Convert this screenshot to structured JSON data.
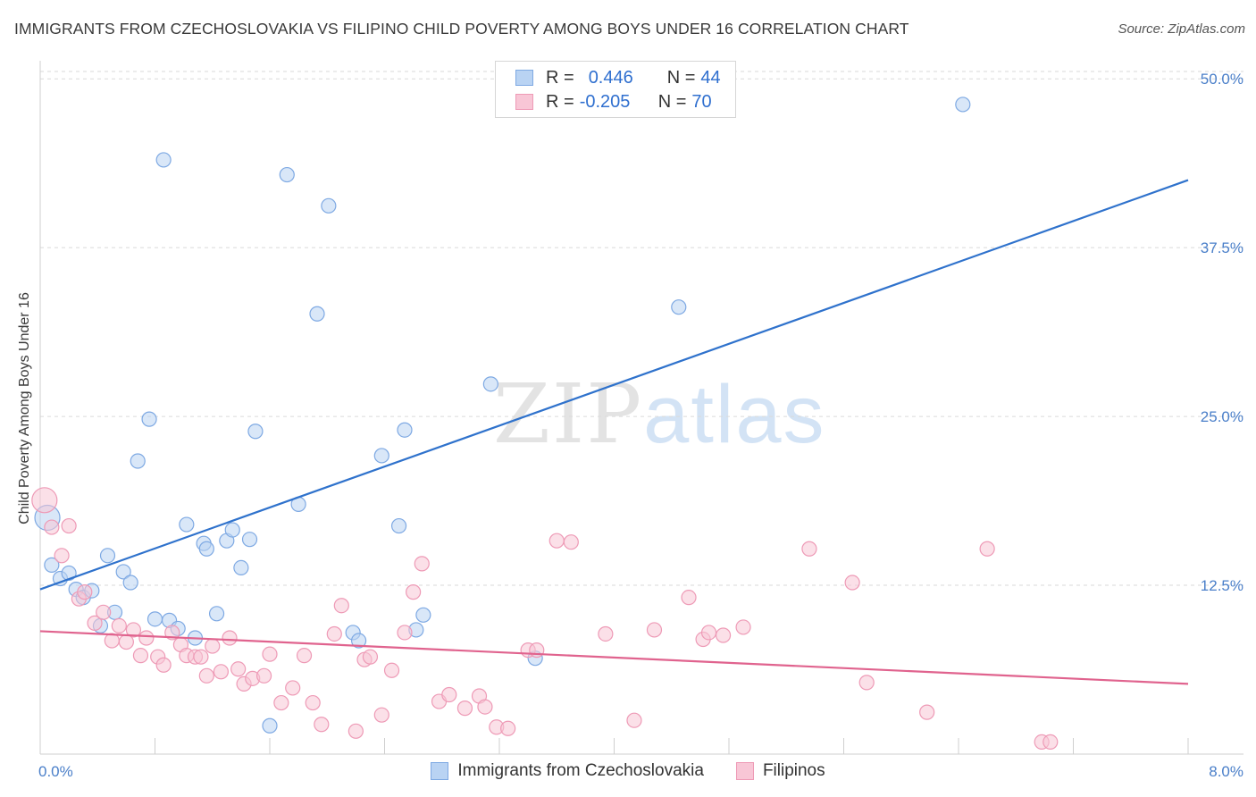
{
  "title": "IMMIGRANTS FROM CZECHOSLOVAKIA VS FILIPINO CHILD POVERTY AMONG BOYS UNDER 16 CORRELATION CHART",
  "source": "Source: ZipAtlas.com",
  "watermark": {
    "zip": "ZIP",
    "atlas": "atlas"
  },
  "legend": {
    "rows": [
      {
        "r_label": "R =",
        "r_value": "0.446",
        "n_label": "N =",
        "n_value": "44"
      },
      {
        "r_label": "R =",
        "r_value": "-0.205",
        "n_label": "N =",
        "n_value": "70"
      }
    ]
  },
  "colors": {
    "blue_fill": "#b9d3f3",
    "blue_stroke": "#7ea9e3",
    "blue_line": "#2f72cc",
    "pink_fill": "#f8c6d6",
    "pink_stroke": "#ee9ab6",
    "pink_line": "#e0638e",
    "axis_text": "#4a7fc9",
    "grid": "#dadada"
  },
  "chart_data": {
    "type": "scatter",
    "xlabel": "",
    "ylabel": "Child Poverty Among Boys Under 16",
    "xlim": [
      0,
      8
    ],
    "ylim": [
      0,
      52
    ],
    "x_tick_labels": [
      {
        "value": 0,
        "label": "0.0%"
      },
      {
        "value": 8,
        "label": "8.0%"
      }
    ],
    "y_tick_labels": [
      {
        "value": 12.5,
        "label": "12.5%"
      },
      {
        "value": 25,
        "label": "25.0%"
      },
      {
        "value": 37.5,
        "label": "37.5%"
      },
      {
        "value": 50,
        "label": "50.0%"
      }
    ],
    "grid": true,
    "legend_position": "top-center",
    "series": [
      {
        "name": "Immigrants from Czechoslovakia",
        "color": "blue",
        "trend": [
          [
            0,
            12.2
          ],
          [
            8,
            42.5
          ]
        ],
        "points": [
          [
            0.05,
            17.5
          ],
          [
            0.08,
            14.0
          ],
          [
            0.14,
            13.0
          ],
          [
            0.2,
            13.4
          ],
          [
            0.25,
            12.2
          ],
          [
            0.3,
            11.6
          ],
          [
            0.36,
            12.1
          ],
          [
            0.42,
            9.5
          ],
          [
            0.47,
            14.7
          ],
          [
            0.52,
            10.5
          ],
          [
            0.58,
            13.5
          ],
          [
            0.63,
            12.7
          ],
          [
            0.68,
            21.7
          ],
          [
            0.76,
            24.8
          ],
          [
            0.8,
            10.0
          ],
          [
            0.86,
            44.0
          ],
          [
            0.9,
            9.9
          ],
          [
            0.96,
            9.3
          ],
          [
            1.02,
            17.0
          ],
          [
            1.08,
            8.6
          ],
          [
            1.14,
            15.6
          ],
          [
            1.16,
            15.2
          ],
          [
            1.23,
            10.4
          ],
          [
            1.3,
            15.8
          ],
          [
            1.34,
            16.6
          ],
          [
            1.4,
            13.8
          ],
          [
            1.46,
            15.9
          ],
          [
            1.5,
            23.9
          ],
          [
            1.6,
            2.1
          ],
          [
            1.72,
            42.9
          ],
          [
            1.8,
            18.5
          ],
          [
            1.93,
            32.6
          ],
          [
            2.01,
            40.6
          ],
          [
            2.18,
            9.0
          ],
          [
            2.22,
            8.4
          ],
          [
            2.38,
            22.1
          ],
          [
            2.5,
            16.9
          ],
          [
            2.54,
            24.0
          ],
          [
            2.62,
            9.2
          ],
          [
            2.67,
            10.3
          ],
          [
            3.14,
            27.4
          ],
          [
            3.45,
            7.1
          ],
          [
            4.45,
            33.1
          ],
          [
            6.43,
            48.1
          ]
        ]
      },
      {
        "name": "Filipinos",
        "color": "pink",
        "trend": [
          [
            0,
            9.1
          ],
          [
            8,
            5.2
          ]
        ],
        "points": [
          [
            0.03,
            18.8
          ],
          [
            0.08,
            16.8
          ],
          [
            0.15,
            14.7
          ],
          [
            0.2,
            16.9
          ],
          [
            0.27,
            11.5
          ],
          [
            0.31,
            12.0
          ],
          [
            0.38,
            9.7
          ],
          [
            0.44,
            10.5
          ],
          [
            0.5,
            8.4
          ],
          [
            0.55,
            9.5
          ],
          [
            0.6,
            8.3
          ],
          [
            0.65,
            9.2
          ],
          [
            0.7,
            7.3
          ],
          [
            0.74,
            8.6
          ],
          [
            0.82,
            7.2
          ],
          [
            0.86,
            6.6
          ],
          [
            0.92,
            9.0
          ],
          [
            0.98,
            8.1
          ],
          [
            1.02,
            7.3
          ],
          [
            1.08,
            7.2
          ],
          [
            1.12,
            7.2
          ],
          [
            1.16,
            5.8
          ],
          [
            1.2,
            8.0
          ],
          [
            1.26,
            6.1
          ],
          [
            1.32,
            8.6
          ],
          [
            1.38,
            6.3
          ],
          [
            1.42,
            5.2
          ],
          [
            1.48,
            5.6
          ],
          [
            1.56,
            5.8
          ],
          [
            1.6,
            7.4
          ],
          [
            1.68,
            3.8
          ],
          [
            1.76,
            4.9
          ],
          [
            1.84,
            7.3
          ],
          [
            1.9,
            3.8
          ],
          [
            1.96,
            2.2
          ],
          [
            2.05,
            8.9
          ],
          [
            2.1,
            11.0
          ],
          [
            2.2,
            1.7
          ],
          [
            2.26,
            7.0
          ],
          [
            2.3,
            7.2
          ],
          [
            2.38,
            2.9
          ],
          [
            2.45,
            6.2
          ],
          [
            2.54,
            9.0
          ],
          [
            2.6,
            12.0
          ],
          [
            2.66,
            14.1
          ],
          [
            2.78,
            3.9
          ],
          [
            2.85,
            4.4
          ],
          [
            2.96,
            3.4
          ],
          [
            3.06,
            4.3
          ],
          [
            3.1,
            3.5
          ],
          [
            3.18,
            2.0
          ],
          [
            3.26,
            1.9
          ],
          [
            3.4,
            7.7
          ],
          [
            3.46,
            7.7
          ],
          [
            3.6,
            15.8
          ],
          [
            3.7,
            15.7
          ],
          [
            3.94,
            8.9
          ],
          [
            4.14,
            2.5
          ],
          [
            4.28,
            9.2
          ],
          [
            4.52,
            11.6
          ],
          [
            4.62,
            8.5
          ],
          [
            4.66,
            9.0
          ],
          [
            4.76,
            8.8
          ],
          [
            4.9,
            9.4
          ],
          [
            5.36,
            15.2
          ],
          [
            5.66,
            12.7
          ],
          [
            5.76,
            5.3
          ],
          [
            6.18,
            3.1
          ],
          [
            6.6,
            15.2
          ],
          [
            6.98,
            0.9
          ],
          [
            7.04,
            0.9
          ]
        ]
      }
    ]
  }
}
